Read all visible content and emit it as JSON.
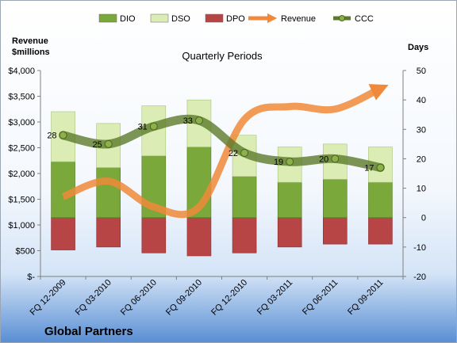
{
  "company": "Global Partners",
  "chart_data": {
    "type": "bar",
    "title": "Quarterly Periods",
    "categories": [
      "FQ 12-2009",
      "FQ 03-2010",
      "FQ 06-2010",
      "FQ 09-2010",
      "FQ 12-2010",
      "FQ 03-2011",
      "FQ 06-2011",
      "FQ 09-2011"
    ],
    "left_axis": {
      "label_lines": [
        "Revenue",
        "$millions"
      ],
      "range": [
        0,
        4000
      ],
      "ticks": [
        0,
        500,
        1000,
        1500,
        2000,
        2500,
        3000,
        3500,
        4000
      ],
      "tick_labels": [
        "$-",
        "$500",
        "$1,000",
        "$1,500",
        "$2,000",
        "$2,500",
        "$3,000",
        "$3,500",
        "$4,000"
      ]
    },
    "right_axis": {
      "label": "Days",
      "range": [
        -20,
        50
      ],
      "ticks": [
        -20,
        -10,
        0,
        10,
        20,
        30,
        40,
        50
      ],
      "tick_labels": [
        "-20",
        "-10",
        "0",
        "10",
        "20",
        "30",
        "40",
        "50"
      ]
    },
    "legend_position": "top",
    "grid": false,
    "series": [
      {
        "name": "DIO",
        "kind": "stacked-bar",
        "axis": "right",
        "color": "#7aa83a",
        "values": [
          19,
          17,
          21,
          24,
          14,
          12,
          13,
          12
        ]
      },
      {
        "name": "DSO",
        "kind": "stacked-bar",
        "axis": "right",
        "color": "#dbedb4",
        "values": [
          17,
          15,
          17,
          16,
          14,
          12,
          12,
          12
        ]
      },
      {
        "name": "DPO",
        "kind": "negative-bar",
        "axis": "right",
        "color": "#b84545",
        "values": [
          -11,
          -10,
          -12,
          -13,
          -12,
          -10,
          -9,
          -9
        ]
      },
      {
        "name": "Revenue",
        "kind": "line",
        "axis": "left",
        "color": "#f08a3a",
        "values": [
          1550,
          1850,
          1350,
          1350,
          3050,
          3300,
          3250,
          3650
        ]
      },
      {
        "name": "CCC",
        "kind": "line",
        "axis": "right",
        "color": "#5c7a2c",
        "values": [
          28,
          25,
          31,
          33,
          22,
          19,
          20,
          17
        ],
        "labels": [
          "28",
          "25",
          "31",
          "33",
          "22",
          "19",
          "20",
          "17"
        ]
      }
    ]
  }
}
